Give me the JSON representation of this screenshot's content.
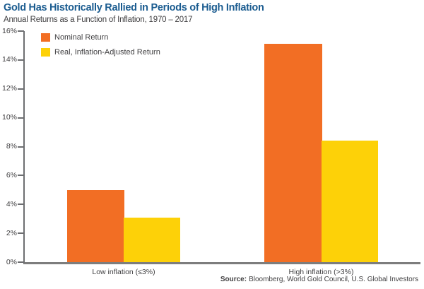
{
  "header": {
    "title": "Gold Has Historically Rallied in Periods of High Inflation",
    "subtitle": "Annual Returns as a Function of Inflation, 1970 – 2017"
  },
  "chart_data": {
    "type": "bar",
    "categories": [
      "Low inflation (≤3%)",
      "High inflation (>3%)"
    ],
    "series": [
      {
        "name": "Nominal Return",
        "values": [
          5.0,
          15.1
        ],
        "color": "#F26E24"
      },
      {
        "name": "Real, Inflation-Adjusted Return",
        "values": [
          3.1,
          8.4
        ],
        "color": "#FDD108"
      }
    ],
    "xlabel": "",
    "ylabel": "",
    "ylim": [
      0,
      16
    ],
    "ytick_step": 2,
    "yticklabels": [
      "0%",
      "2%",
      "4%",
      "6%",
      "8%",
      "10%",
      "12%",
      "14%",
      "16%"
    ],
    "grid": false,
    "legend_position": "top-left"
  },
  "footer": {
    "source_label": "Source:",
    "source_text": "Bloomberg, World Gold Council, U.S. Global Investors"
  },
  "colors": {
    "title_blue": "#1B5C90",
    "body_text": "#414042",
    "axis_line": "#6D6E71",
    "baseline": "#7D7D7D"
  }
}
